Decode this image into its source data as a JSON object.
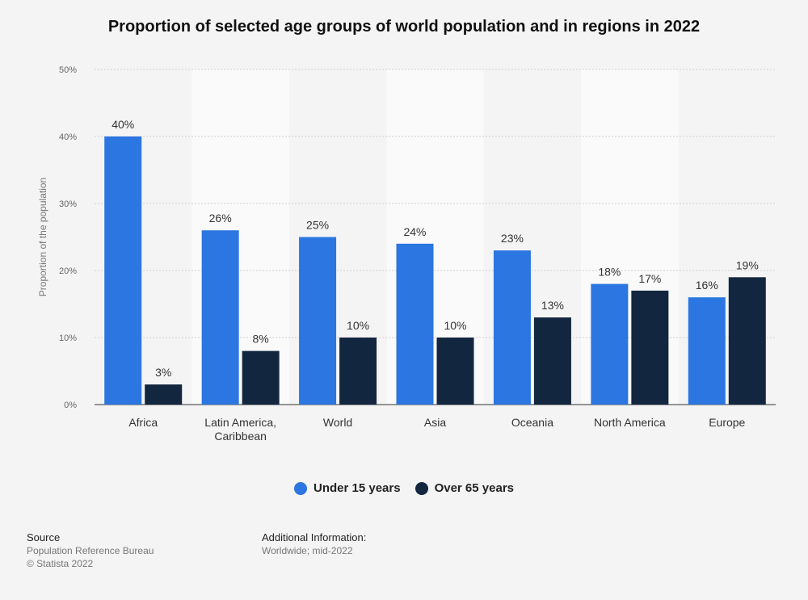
{
  "colors": {
    "under15": "#2b76e0",
    "over65": "#12263f"
  },
  "chart_data": {
    "type": "bar",
    "title": "Proportion of selected age groups of world population and in regions in 2022",
    "ylabel": "Proportion of the population",
    "xlabel": "",
    "ylim": [
      0,
      50
    ],
    "yticks": [
      "0%",
      "10%",
      "20%",
      "30%",
      "40%",
      "50%"
    ],
    "grid": true,
    "legend_position": "bottom",
    "categories": [
      "Africa",
      "Latin America, Caribbean",
      "World",
      "Asia",
      "Oceania",
      "North America",
      "Europe"
    ],
    "category_lines": [
      [
        "Africa"
      ],
      [
        "Latin America,",
        "Caribbean"
      ],
      [
        "World"
      ],
      [
        "Asia"
      ],
      [
        "Oceania"
      ],
      [
        "North America"
      ],
      [
        "Europe"
      ]
    ],
    "series": [
      {
        "name": "Under 15 years",
        "values": [
          40,
          26,
          25,
          24,
          23,
          18,
          16
        ],
        "labels": [
          "40%",
          "26%",
          "25%",
          "24%",
          "23%",
          "18%",
          "16%"
        ]
      },
      {
        "name": "Over 65 years",
        "values": [
          3,
          8,
          10,
          10,
          13,
          17,
          19
        ],
        "labels": [
          "3%",
          "8%",
          "10%",
          "10%",
          "13%",
          "17%",
          "19%"
        ]
      }
    ]
  },
  "footer": {
    "source_heading": "Source",
    "source_text": "Population Reference Bureau",
    "copyright": "© Statista 2022",
    "info_heading": "Additional Information:",
    "info_text": "Worldwide; mid-2022"
  }
}
